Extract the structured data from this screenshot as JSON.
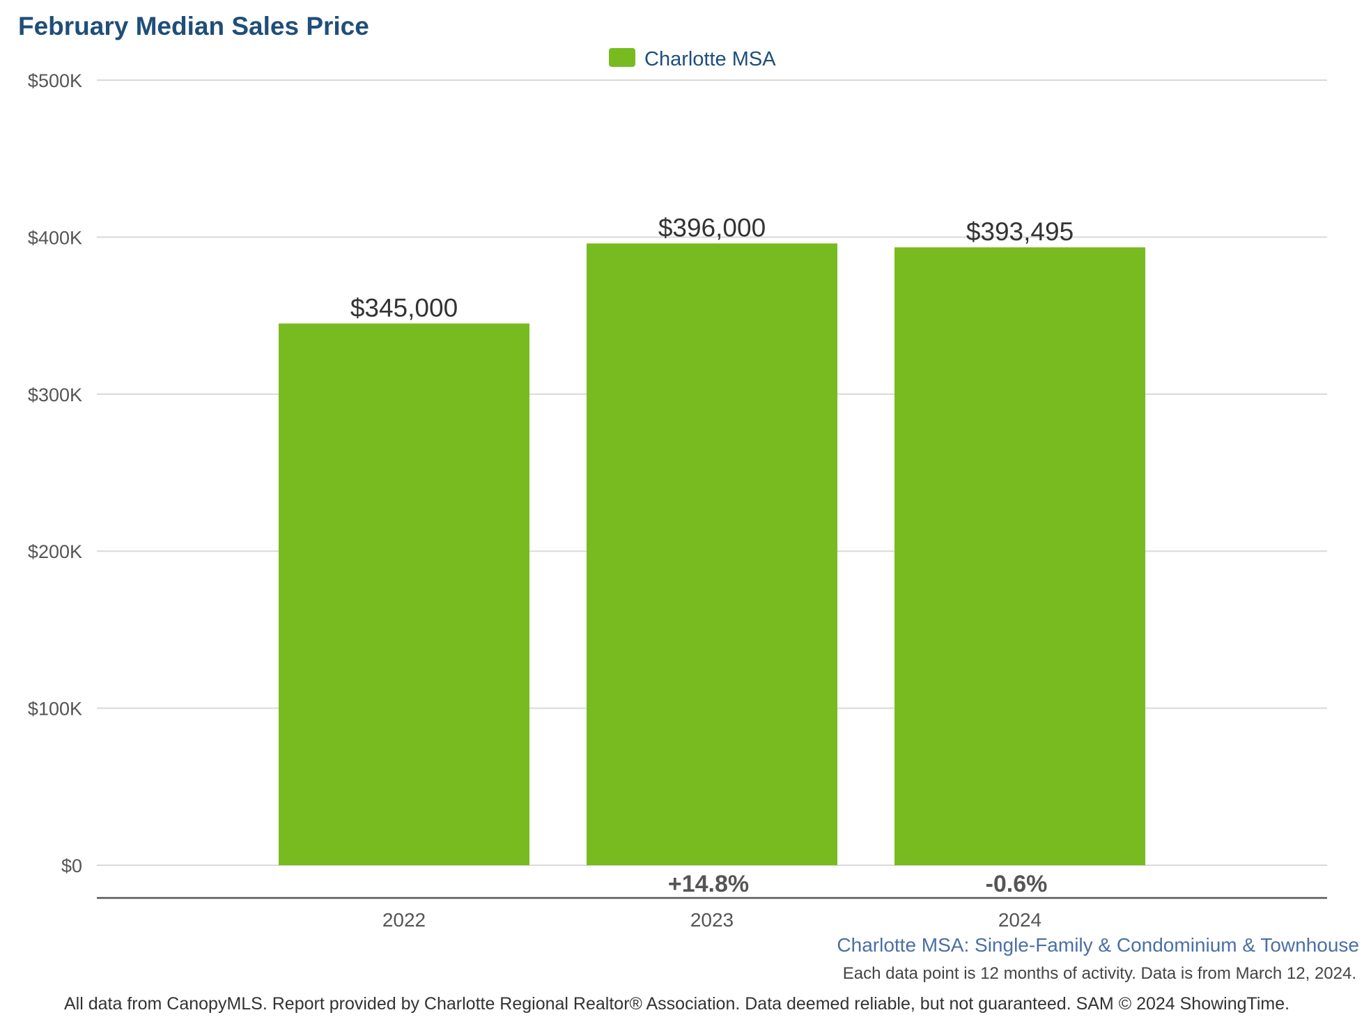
{
  "chart_data": {
    "type": "bar",
    "title": "February Median Sales Price",
    "categories": [
      "2022",
      "2023",
      "2024"
    ],
    "series": [
      {
        "name": "Charlotte MSA",
        "values": [
          345000,
          396000,
          393495
        ],
        "value_labels": [
          "$345,000",
          "$396,000",
          "$393,495"
        ],
        "color": "#78bb20"
      }
    ],
    "change_labels": [
      "",
      "+14.8%",
      "-0.6%"
    ],
    "ylim": [
      0,
      500000
    ],
    "y_ticks": [
      0,
      100000,
      200000,
      300000,
      400000,
      500000
    ],
    "y_tick_labels": [
      "$0",
      "$100K",
      "$200K",
      "$300K",
      "$400K",
      "$500K"
    ],
    "xlabel": "",
    "ylabel": "",
    "grid": true,
    "legend_position": "top-center"
  },
  "subtitle": "Charlotte MSA: Single-Family & Condominium & Townhouse",
  "note": "Each data point is 12 months of activity. Data is from March 12, 2024.",
  "footer": "All data from CanopyMLS. Report provided by Charlotte Regional Realtor® Association. Data deemed reliable, but not guaranteed. SAM © 2024 ShowingTime.",
  "colors": {
    "title": "#1f4e79",
    "grid": "#d9d9d9",
    "axis": "#555555",
    "subtitle": "#4a6fa5"
  }
}
